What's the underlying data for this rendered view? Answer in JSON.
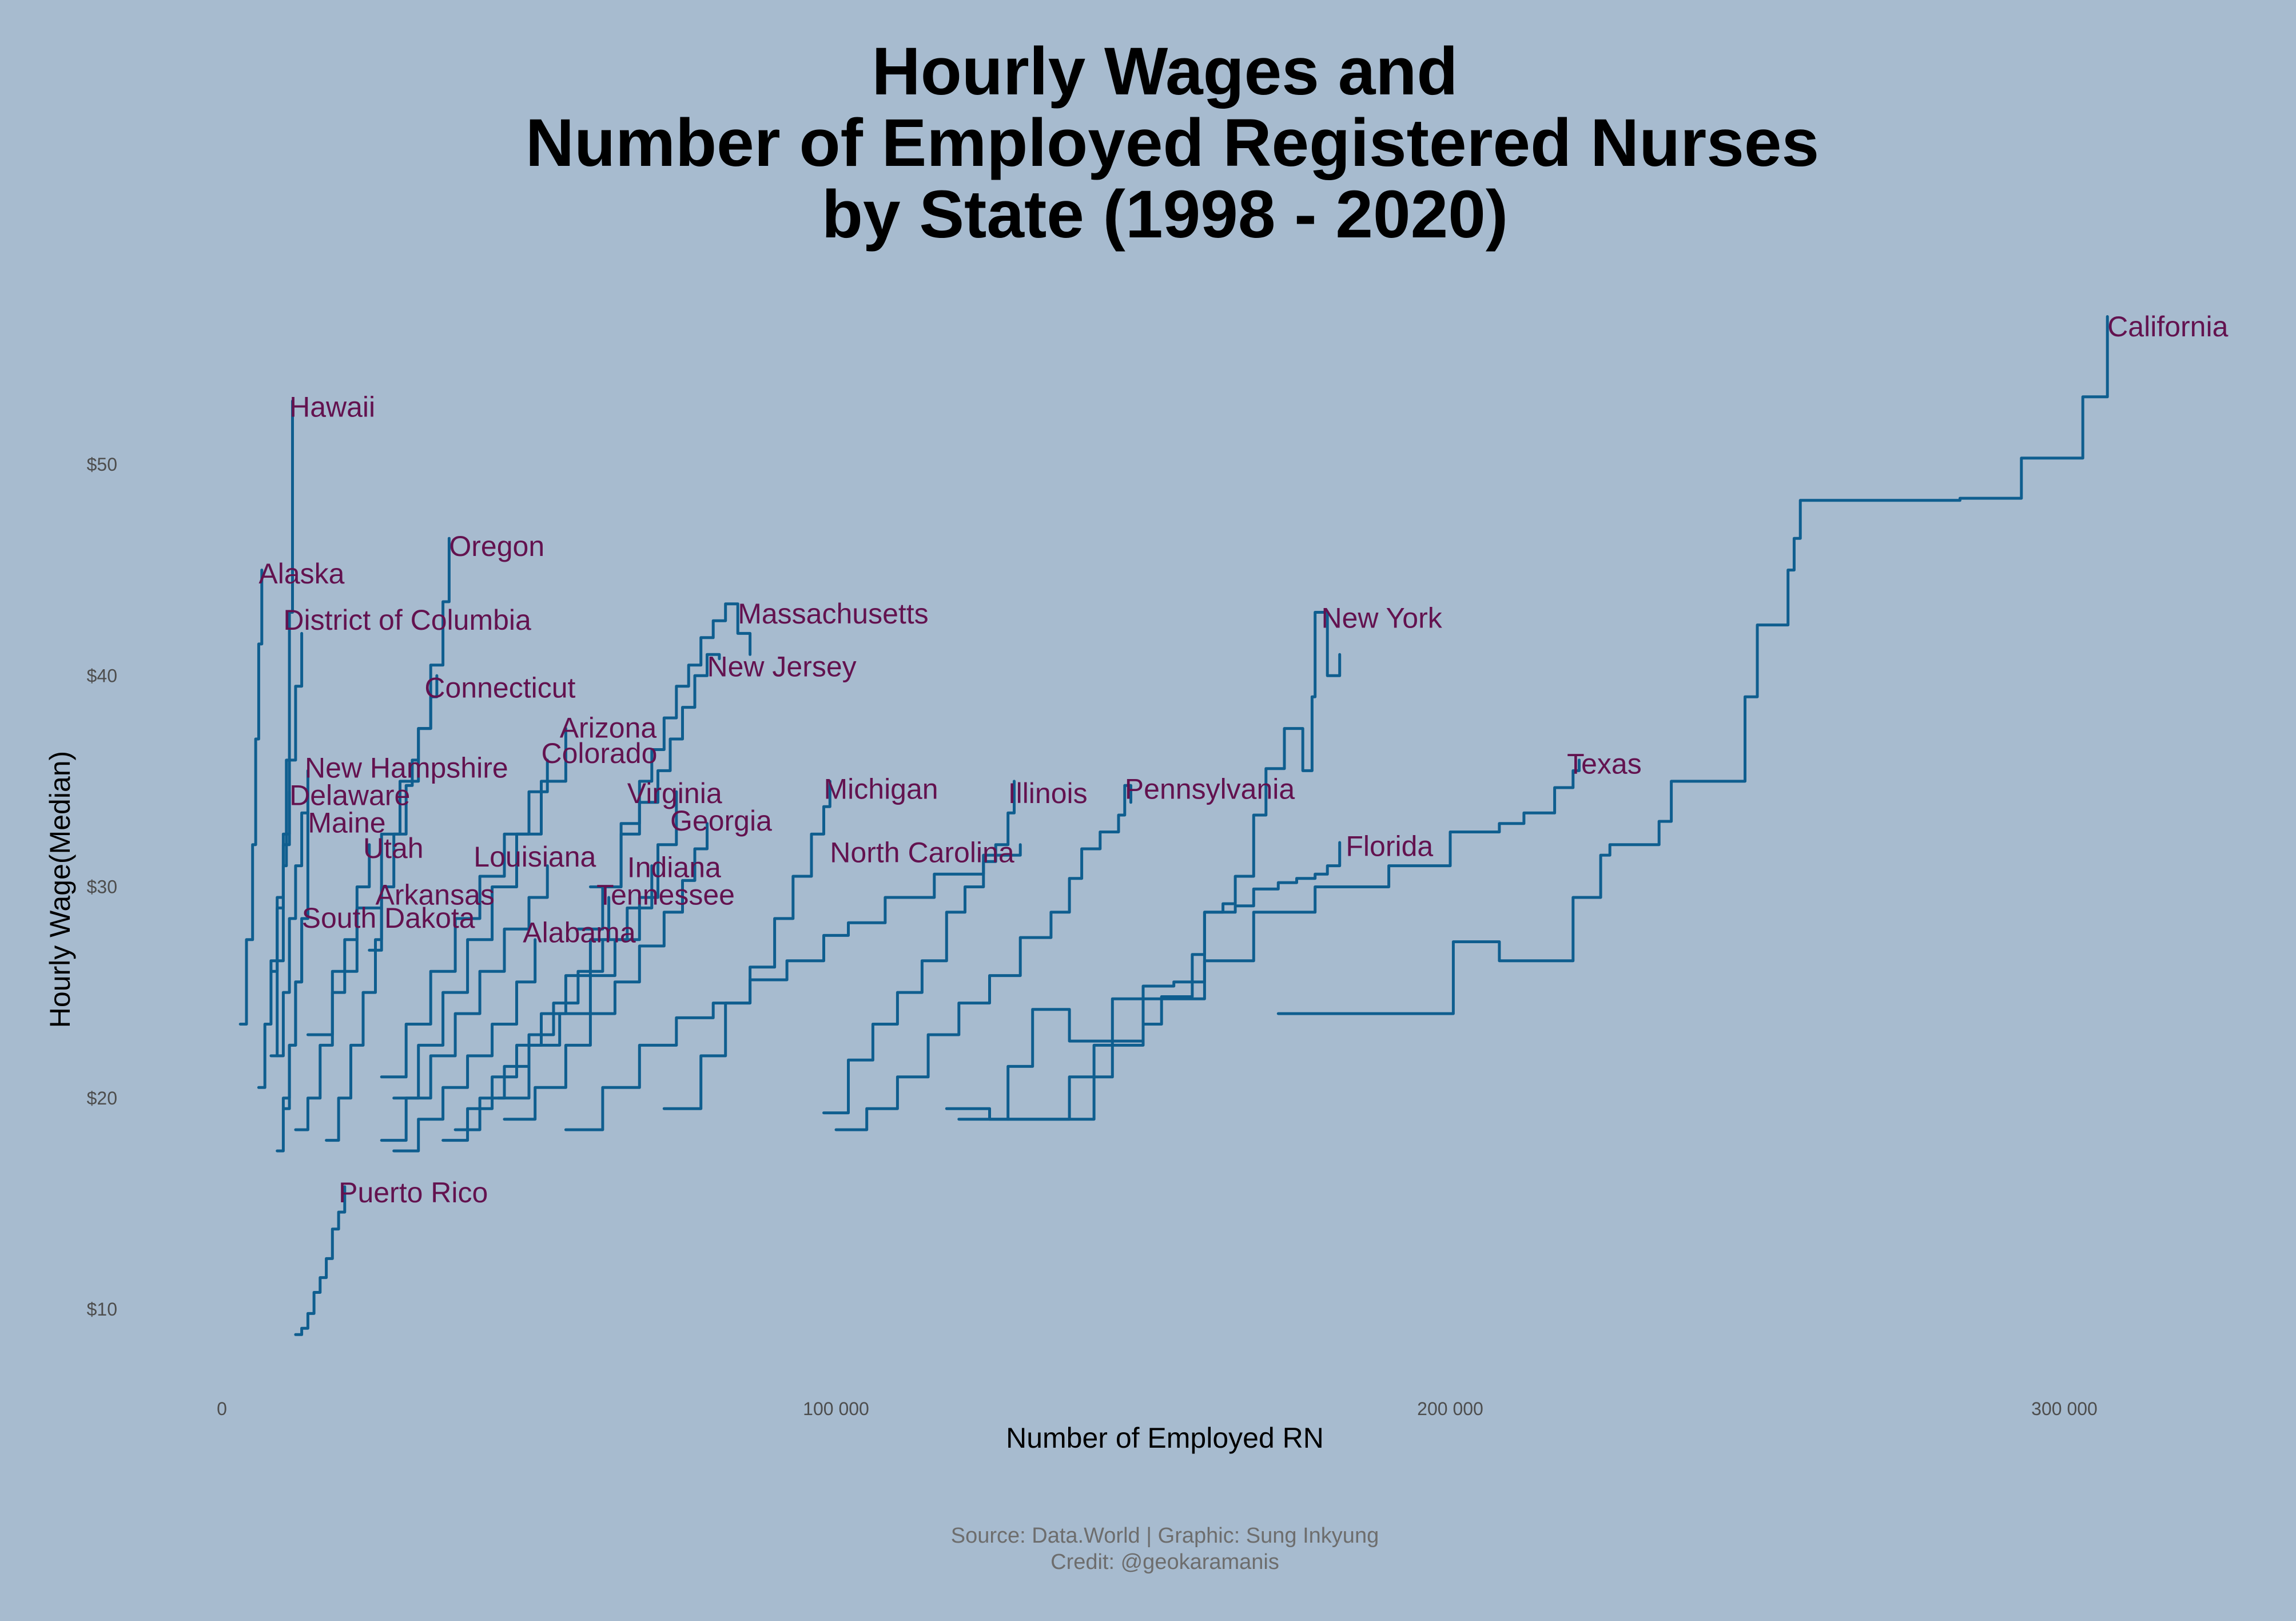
{
  "chart_data": {
    "type": "line",
    "title": [
      "Hourly Wages and",
      "Number of Employed Registered Nurses",
      "by State (1998 - 2020)"
    ],
    "xlabel": "Number of Employed RN",
    "ylabel": "Hourly Wage(Median)",
    "xlim": [
      -5000,
      330000
    ],
    "ylim": [
      7,
      58
    ],
    "x_ticks": [
      0,
      100000,
      200000,
      300000
    ],
    "x_tick_labels": [
      "0",
      "100 000",
      "200 000",
      "300 000"
    ],
    "y_ticks": [
      10,
      20,
      30,
      40,
      50
    ],
    "y_tick_labels": [
      "$10",
      "$20",
      "$30",
      "$40",
      "$50"
    ],
    "grid": false,
    "legend": "none",
    "line_color": "#0f5e8f",
    "label_color": "#63124f",
    "background": "#a7bbcf",
    "series": [
      {
        "name": "California",
        "x": [
          172000,
          200000,
          200500,
          205000,
          208000,
          220000,
          222000,
          224000,
          224500,
          226000,
          234000,
          236000,
          248000,
          250000,
          255000,
          256000,
          257000,
          283000,
          293000,
          303000,
          307000
        ],
        "y": [
          24.0,
          24.0,
          27.4,
          27.4,
          26.5,
          29.5,
          29.5,
          29.5,
          31.5,
          32.0,
          33.1,
          35.0,
          39.0,
          42.4,
          45.0,
          46.5,
          48.3,
          48.4,
          50.3,
          53.2,
          57.0
        ]
      },
      {
        "name": "New York",
        "x": [
          128000,
          140000,
          142000,
          150000,
          153000,
          158000,
          160000,
          163000,
          165000,
          168000,
          170000,
          173000,
          176000,
          177500,
          178000,
          180000,
          182000
        ],
        "y": [
          19.0,
          19.0,
          22.5,
          23.5,
          24.8,
          26.8,
          28.8,
          29.2,
          30.5,
          33.4,
          35.6,
          37.5,
          35.5,
          39.0,
          43.0,
          40.0,
          41.0
        ]
      },
      {
        "name": "Texas",
        "x": [
          120000,
          135000,
          138000,
          145000,
          150000,
          160000,
          168000,
          178000,
          190000,
          200000,
          208000,
          212000,
          217000,
          220000,
          221000
        ],
        "y": [
          19.0,
          19.0,
          21.0,
          22.7,
          24.7,
          26.5,
          28.8,
          30.0,
          31.0,
          32.6,
          33.0,
          33.5,
          34.7,
          35.5,
          36.0
        ]
      },
      {
        "name": "Florida",
        "x": [
          118000,
          125000,
          128000,
          132000,
          138000,
          145000,
          150000,
          155000,
          160000,
          165000,
          168000,
          172000,
          175000,
          178000,
          180000,
          182000
        ],
        "y": [
          19.5,
          19.0,
          21.5,
          24.2,
          22.7,
          24.7,
          25.3,
          25.5,
          28.8,
          29.1,
          29.9,
          30.2,
          30.4,
          30.6,
          31.0,
          32.1
        ]
      },
      {
        "name": "Pennsylvania",
        "x": [
          100000,
          105000,
          110000,
          115000,
          120000,
          125000,
          130000,
          135000,
          138000,
          140000,
          143000,
          146000,
          147000,
          148000
        ],
        "y": [
          18.5,
          19.5,
          21.0,
          23.0,
          24.5,
          25.8,
          27.6,
          28.8,
          30.4,
          31.8,
          32.6,
          33.4,
          34.8,
          34.0
        ]
      },
      {
        "name": "Illinois",
        "x": [
          98000,
          102000,
          106000,
          110000,
          114000,
          118000,
          121000,
          124000,
          126000,
          128000,
          129000
        ],
        "y": [
          19.3,
          21.8,
          23.5,
          25.0,
          26.5,
          28.8,
          30.0,
          31.2,
          32.0,
          33.5,
          35.0
        ]
      },
      {
        "name": "Michigan",
        "x": [
          72000,
          78000,
          82000,
          86000,
          90000,
          93000,
          96000,
          98000,
          99000
        ],
        "y": [
          19.5,
          22.0,
          24.5,
          26.2,
          28.5,
          30.5,
          32.5,
          33.8,
          35.0
        ]
      },
      {
        "name": "North Carolina",
        "x": [
          56000,
          62000,
          68000,
          74000,
          80000,
          86000,
          92000,
          98000,
          102000,
          108000,
          116000,
          124000,
          130000
        ],
        "y": [
          18.5,
          20.5,
          22.5,
          23.8,
          24.5,
          25.6,
          26.5,
          27.7,
          28.3,
          29.5,
          30.6,
          31.5,
          32.0
        ]
      },
      {
        "name": "Massachusetts",
        "x": [
          60000,
          65000,
          68000,
          70000,
          72000,
          74000,
          76000,
          78000,
          80000,
          82000,
          84000,
          86000
        ],
        "y": [
          30.0,
          33.0,
          35.0,
          36.5,
          38.0,
          39.5,
          40.5,
          41.8,
          42.6,
          43.4,
          42.0,
          41.0
        ]
      },
      {
        "name": "New Jersey",
        "x": [
          58000,
          62000,
          65000,
          68000,
          71000,
          73000,
          75000,
          77000,
          79000,
          81000
        ],
        "y": [
          28.0,
          30.0,
          32.5,
          34.0,
          35.5,
          37.0,
          38.5,
          40.0,
          41.0,
          40.8
        ]
      },
      {
        "name": "Virginia",
        "x": [
          45000,
          50000,
          55000,
          60000,
          64000,
          68000,
          71000,
          74000
        ],
        "y": [
          20.0,
          22.5,
          24.0,
          25.8,
          27.5,
          29.5,
          32.0,
          34.5
        ]
      },
      {
        "name": "Georgia",
        "x": [
          46000,
          51000,
          56000,
          60000,
          64000,
          68000,
          72000,
          75000,
          77000,
          79000
        ],
        "y": [
          19.0,
          20.5,
          22.5,
          24.0,
          25.5,
          27.2,
          28.8,
          30.3,
          31.8,
          33.0
        ]
      },
      {
        "name": "Indiana",
        "x": [
          38000,
          42000,
          46000,
          50000,
          54000,
          58000,
          62000,
          66000,
          70000
        ],
        "y": [
          18.5,
          20.0,
          21.5,
          23.0,
          24.5,
          26.0,
          27.5,
          29.0,
          31.0
        ]
      },
      {
        "name": "Tennessee",
        "x": [
          36000,
          40000,
          44000,
          48000,
          52000,
          56000,
          60000,
          63000
        ],
        "y": [
          18.0,
          19.5,
          21.0,
          22.5,
          24.0,
          25.8,
          27.5,
          29.5
        ]
      },
      {
        "name": "Alabama",
        "x": [
          28000,
          32000,
          36000,
          40000,
          44000,
          48000,
          51000
        ],
        "y": [
          17.5,
          19.0,
          20.5,
          22.0,
          23.5,
          25.5,
          27.5
        ]
      },
      {
        "name": "Louisiana",
        "x": [
          26000,
          30000,
          34000,
          38000,
          42000,
          46000,
          50000,
          53000
        ],
        "y": [
          18.0,
          20.0,
          22.0,
          24.0,
          26.0,
          28.0,
          29.5,
          31.0
        ]
      },
      {
        "name": "Colorado",
        "x": [
          26000,
          30000,
          34000,
          38000,
          42000,
          46000,
          50000,
          53000
        ],
        "y": [
          21.0,
          23.5,
          26.0,
          28.5,
          30.5,
          32.5,
          34.5,
          36.0
        ]
      },
      {
        "name": "Arizona",
        "x": [
          28000,
          32000,
          36000,
          40000,
          44000,
          48000,
          52000,
          56000
        ],
        "y": [
          20.0,
          22.5,
          25.0,
          27.5,
          30.0,
          32.5,
          35.0,
          37.5
        ]
      },
      {
        "name": "Connecticut",
        "x": [
          24000,
          26000,
          28000,
          30000,
          31000,
          32000,
          34000,
          35000
        ],
        "y": [
          27.0,
          30.0,
          32.5,
          34.8,
          36.0,
          37.5,
          39.0,
          40.0
        ]
      },
      {
        "name": "Oregon",
        "x": [
          14000,
          18000,
          22000,
          26000,
          29000,
          32000,
          34000,
          36000,
          37000
        ],
        "y": [
          23.0,
          26.0,
          29.0,
          32.5,
          35.0,
          37.5,
          40.5,
          43.5,
          46.5
        ]
      },
      {
        "name": "District of Columbia",
        "x": [
          8000,
          9000,
          10000,
          11000,
          12000,
          13000
        ],
        "y": [
          26.0,
          29.0,
          32.5,
          36.0,
          39.5,
          42.0
        ]
      },
      {
        "name": "Hawaii",
        "x": [
          8000,
          9000,
          10000,
          10500,
          11000,
          11500
        ],
        "y": [
          22.0,
          26.5,
          31.0,
          36.0,
          43.0,
          53.0
        ]
      },
      {
        "name": "Alaska",
        "x": [
          3000,
          4000,
          5000,
          5500,
          6000,
          6500
        ],
        "y": [
          23.5,
          27.5,
          32.0,
          37.0,
          41.5,
          45.0
        ]
      },
      {
        "name": "New Hampshire",
        "x": [
          9000,
          10000,
          11000,
          12000,
          13000,
          14000
        ],
        "y": [
          22.0,
          25.0,
          28.5,
          31.0,
          33.5,
          35.5
        ]
      },
      {
        "name": "Delaware",
        "x": [
          6000,
          7000,
          8000,
          9000,
          10000,
          11000
        ],
        "y": [
          20.5,
          23.5,
          26.5,
          29.5,
          32.0,
          34.5
        ]
      },
      {
        "name": "Maine",
        "x": [
          10000,
          11000,
          12000,
          13000,
          14000
        ],
        "y": [
          19.5,
          22.5,
          25.5,
          28.5,
          33.5
        ]
      },
      {
        "name": "Utah",
        "x": [
          12000,
          14000,
          16000,
          18000,
          20000,
          22000,
          24000
        ],
        "y": [
          18.5,
          20.0,
          22.5,
          25.0,
          27.5,
          30.0,
          32.0
        ]
      },
      {
        "name": "Arkansas",
        "x": [
          17000,
          19000,
          21000,
          23000,
          25000,
          26000
        ],
        "y": [
          18.0,
          20.0,
          22.5,
          25.0,
          27.5,
          29.0
        ]
      },
      {
        "name": "South Dakota",
        "x": [
          9000,
          10000,
          11000,
          12000,
          13000
        ],
        "y": [
          17.5,
          20.0,
          22.5,
          25.5,
          28.0
        ]
      },
      {
        "name": "Puerto Rico",
        "x": [
          12000,
          13000,
          14000,
          15000,
          16000,
          17000,
          18000,
          19000,
          20000
        ],
        "y": [
          8.8,
          9.1,
          9.8,
          10.8,
          11.5,
          12.4,
          13.8,
          14.6,
          15.8
        ]
      }
    ],
    "state_labels": [
      {
        "text": "California",
        "x": 307000,
        "y": 56.5
      },
      {
        "text": "Hawaii",
        "x": 11000,
        "y": 52.7
      },
      {
        "text": "Oregon",
        "x": 37000,
        "y": 46.1
      },
      {
        "text": "Alaska",
        "x": 6000,
        "y": 44.8
      },
      {
        "text": "District of Columbia",
        "x": 10000,
        "y": 42.6
      },
      {
        "text": "Massachusetts",
        "x": 84000,
        "y": 42.9
      },
      {
        "text": "New York",
        "x": 179000,
        "y": 42.7
      },
      {
        "text": "New Jersey",
        "x": 79000,
        "y": 40.4
      },
      {
        "text": "Connecticut",
        "x": 33000,
        "y": 39.4
      },
      {
        "text": "Arizona",
        "x": 55000,
        "y": 37.5
      },
      {
        "text": "Colorado",
        "x": 52000,
        "y": 36.3
      },
      {
        "text": "New Hampshire",
        "x": 13500,
        "y": 35.6
      },
      {
        "text": "Texas",
        "x": 219000,
        "y": 35.8
      },
      {
        "text": "Delaware",
        "x": 11000,
        "y": 34.3
      },
      {
        "text": "Virginia",
        "x": 66000,
        "y": 34.4
      },
      {
        "text": "Michigan",
        "x": 98000,
        "y": 34.6
      },
      {
        "text": "Illinois",
        "x": 128000,
        "y": 34.4
      },
      {
        "text": "Pennsylvania",
        "x": 147000,
        "y": 34.6
      },
      {
        "text": "Maine",
        "x": 14000,
        "y": 33.0
      },
      {
        "text": "Georgia",
        "x": 73000,
        "y": 33.1
      },
      {
        "text": "Utah",
        "x": 23000,
        "y": 31.8
      },
      {
        "text": "North Carolina",
        "x": 99000,
        "y": 31.6
      },
      {
        "text": "Florida",
        "x": 183000,
        "y": 31.9
      },
      {
        "text": "Louisiana",
        "x": 41000,
        "y": 31.4
      },
      {
        "text": "Indiana",
        "x": 66000,
        "y": 30.9
      },
      {
        "text": "Arkansas",
        "x": 25000,
        "y": 29.6
      },
      {
        "text": "Tennessee",
        "x": 61000,
        "y": 29.6
      },
      {
        "text": "South Dakota",
        "x": 13000,
        "y": 28.5
      },
      {
        "text": "Alabama",
        "x": 49000,
        "y": 27.8
      },
      {
        "text": "Puerto Rico",
        "x": 19000,
        "y": 15.5
      }
    ]
  },
  "caption": [
    "Source: Data.World | Graphic: Sung Inkyung",
    "Credit: @geokaramanis"
  ]
}
